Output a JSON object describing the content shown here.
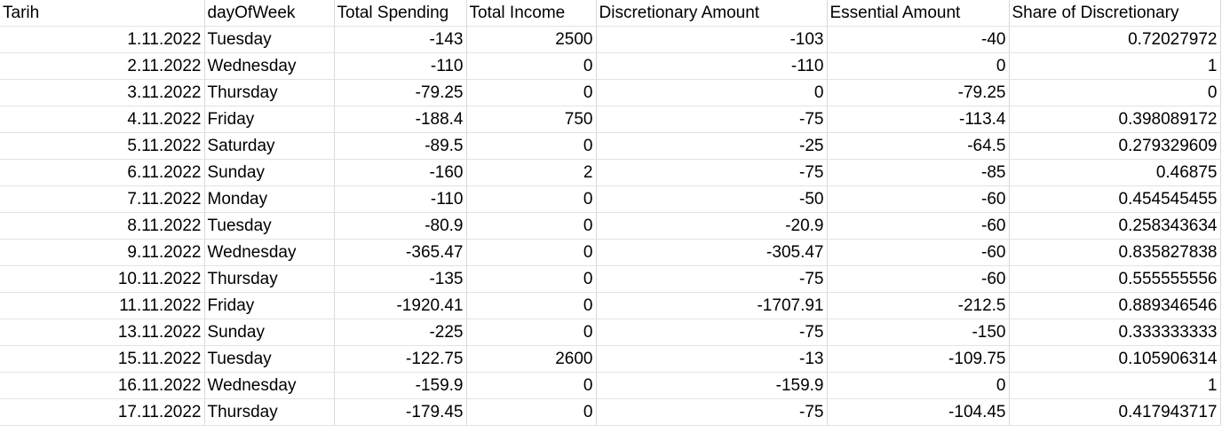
{
  "columns": [
    "Tarih",
    "dayOfWeek",
    "Total Spending",
    "Total Income",
    "Discretionary Amount",
    "Essential Amount",
    "Share of Discretionary"
  ],
  "rows": [
    [
      "1.11.2022",
      "Tuesday",
      "-143",
      "2500",
      "-103",
      "-40",
      "0.72027972"
    ],
    [
      "2.11.2022",
      "Wednesday",
      "-110",
      "0",
      "-110",
      "0",
      "1"
    ],
    [
      "3.11.2022",
      "Thursday",
      "-79.25",
      "0",
      "0",
      "-79.25",
      "0"
    ],
    [
      "4.11.2022",
      "Friday",
      "-188.4",
      "750",
      "-75",
      "-113.4",
      "0.398089172"
    ],
    [
      "5.11.2022",
      "Saturday",
      "-89.5",
      "0",
      "-25",
      "-64.5",
      "0.279329609"
    ],
    [
      "6.11.2022",
      "Sunday",
      "-160",
      "2",
      "-75",
      "-85",
      "0.46875"
    ],
    [
      "7.11.2022",
      "Monday",
      "-110",
      "0",
      "-50",
      "-60",
      "0.454545455"
    ],
    [
      "8.11.2022",
      "Tuesday",
      "-80.9",
      "0",
      "-20.9",
      "-60",
      "0.258343634"
    ],
    [
      "9.11.2022",
      "Wednesday",
      "-365.47",
      "0",
      "-305.47",
      "-60",
      "0.835827838"
    ],
    [
      "10.11.2022",
      "Thursday",
      "-135",
      "0",
      "-75",
      "-60",
      "0.555555556"
    ],
    [
      "11.11.2022",
      "Friday",
      "-1920.41",
      "0",
      "-1707.91",
      "-212.5",
      "0.889346546"
    ],
    [
      "13.11.2022",
      "Sunday",
      "-225",
      "0",
      "-75",
      "-150",
      "0.333333333"
    ],
    [
      "15.11.2022",
      "Tuesday",
      "-122.75",
      "2600",
      "-13",
      "-109.75",
      "0.105906314"
    ],
    [
      "16.11.2022",
      "Wednesday",
      "-159.9",
      "0",
      "-159.9",
      "0",
      "1"
    ],
    [
      "17.11.2022",
      "Thursday",
      "-179.45",
      "0",
      "-75",
      "-104.45",
      "0.417943717"
    ]
  ]
}
